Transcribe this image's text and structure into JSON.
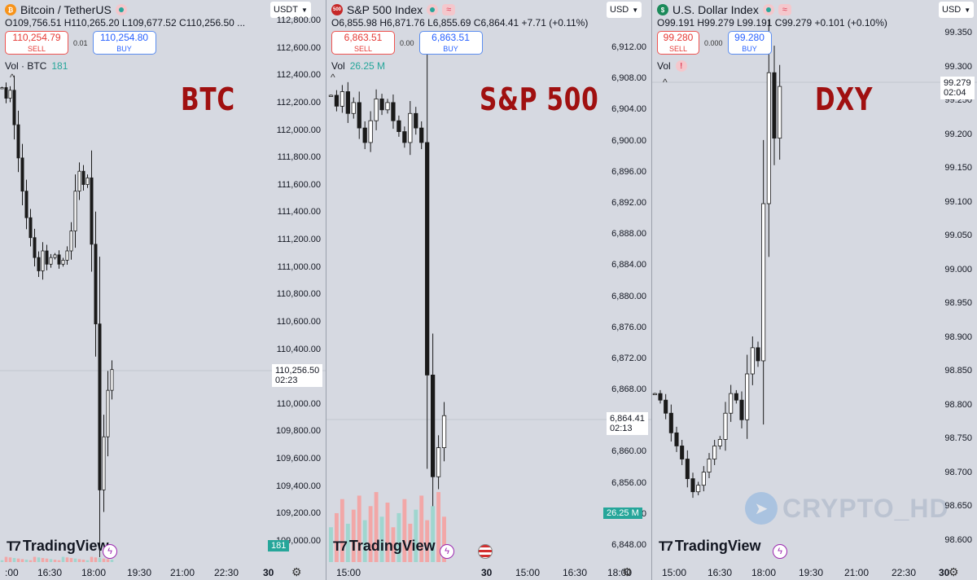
{
  "panels": [
    {
      "key": "btc",
      "title": "Bitcoin / TetherUS",
      "ohlc": "O109,756.51 H110,265.20 L109,677.52 C110,256.50 ...",
      "sell_price": "110,254.79",
      "sell_label": "SELL",
      "spread": "0.01",
      "buy_price": "110,254.80",
      "buy_label": "BUY",
      "vol_label": "Vol · BTC",
      "vol_value": "181",
      "big_label": "BTC",
      "currency": "USDT",
      "price_tag": "110,256.50",
      "countdown": "02:23",
      "vol_tag": "181",
      "y_ticks": [
        "112,800.00",
        "112,600.00",
        "112,400.00",
        "112,200.00",
        "112,000.00",
        "111,800.00",
        "111,600.00",
        "111,400.00",
        "111,200.00",
        "111,000.00",
        "110,800.00",
        "110,600.00",
        "110,400.00",
        "110,200.00",
        "110,000.00",
        "109,800.00",
        "109,600.00",
        "109,400.00",
        "109,200.00",
        "109,000.00"
      ],
      "x_ticks": [
        ":00",
        "16:30",
        "18:00",
        "19:30",
        "21:00",
        "22:30",
        "30"
      ],
      "x_bold_index": 6,
      "chart_data": {
        "type": "candlestick",
        "y_range": [
          108960,
          112880
        ],
        "series_close": [
          112380,
          112300,
          112360,
          112100,
          111850,
          111600,
          111400,
          111250,
          111100,
          111000,
          111150,
          111050,
          111100,
          111120,
          111050,
          111080,
          111150,
          111300,
          111600,
          111750,
          111650,
          111700,
          111200,
          110600,
          109350,
          109750,
          110100,
          110256.5
        ]
      },
      "logo": "TradingView"
    },
    {
      "key": "spx",
      "title": "S&P 500 Index",
      "ohlc": "O6,855.98 H6,871.76 L6,855.69 C6,864.41 +7.71 (+0.11%)",
      "sell_price": "6,863.51",
      "sell_label": "SELL",
      "spread": "0.00",
      "buy_price": "6,863.51",
      "buy_label": "BUY",
      "vol_label": "Vol",
      "vol_value": "26.25 M",
      "big_label": "S&P 500",
      "currency": "USD",
      "price_tag": "6,864.41",
      "countdown": "02:13",
      "vol_tag": "26.25 M",
      "icon_text": "500",
      "y_ticks": [
        "6,912.00",
        "6,908.00",
        "6,904.00",
        "6,900.00",
        "6,896.00",
        "6,892.00",
        "6,888.00",
        "6,884.00",
        "6,880.00",
        "6,876.00",
        "6,872.00",
        "6,868.00",
        "6,864.00",
        "6,860.00",
        "6,856.00",
        "6,852.00",
        "6,848.00"
      ],
      "x_ticks": [
        "15:00",
        "30",
        "15:00",
        "16:30",
        "18:00"
      ],
      "x_bold_index": 1,
      "chart_data": {
        "type": "candlestick",
        "y_range": [
          6846.5,
          6915
        ],
        "series_close": [
          6908.5,
          6907,
          6909,
          6906,
          6907.5,
          6904,
          6902,
          6905,
          6908,
          6906.5,
          6907.5,
          6905,
          6903.5,
          6902,
          6906,
          6904,
          6902,
          6870,
          6856,
          6860,
          6864.41
        ]
      },
      "logo": "TradingView"
    },
    {
      "key": "dxy",
      "title": "U.S. Dollar Index",
      "ohlc": "O99.191 H99.279 L99.191 C99.279 +0.101 (+0.10%)",
      "sell_price": "99.280",
      "sell_label": "SELL",
      "spread": "0.000",
      "buy_price": "99.280",
      "buy_label": "BUY",
      "vol_label": "Vol",
      "alert": "!",
      "big_label": "DXY",
      "currency": "USD",
      "price_tag": "99.279",
      "countdown": "02:04",
      "y_ticks": [
        "99.350",
        "99.300",
        "99.250",
        "99.200",
        "99.150",
        "99.100",
        "99.050",
        "99.000",
        "98.950",
        "98.900",
        "98.850",
        "98.800",
        "98.750",
        "98.700",
        "98.650",
        "98.600"
      ],
      "x_ticks": [
        "15:00",
        "16:30",
        "18:00",
        "19:30",
        "21:00",
        "22:30",
        "30"
      ],
      "x_bold_index": 6,
      "chart_data": {
        "type": "candlestick",
        "y_range": [
          98.585,
          99.36
        ],
        "series_close": [
          98.81,
          98.8,
          98.78,
          98.75,
          98.73,
          98.71,
          98.68,
          98.66,
          98.67,
          98.69,
          98.71,
          98.73,
          98.74,
          98.78,
          98.81,
          98.8,
          98.77,
          98.84,
          98.88,
          98.86,
          99.1,
          99.3,
          99.2,
          99.279
        ]
      },
      "watermark": "CRYPTO_HD",
      "logo": "TradingView"
    }
  ]
}
